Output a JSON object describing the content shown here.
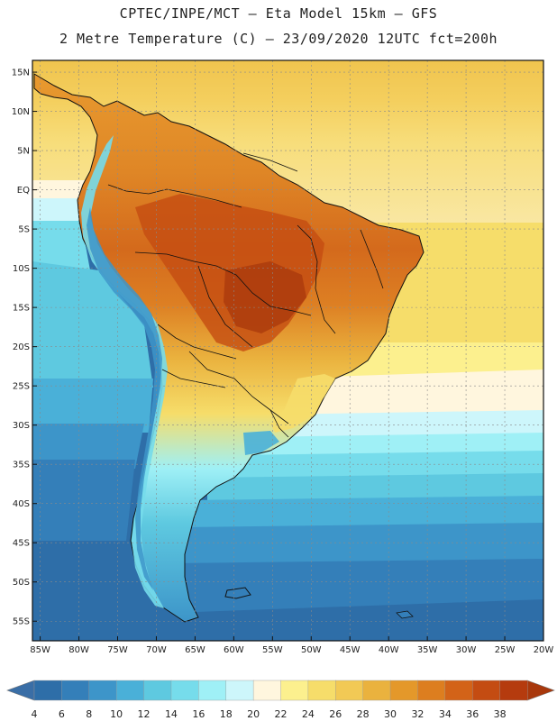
{
  "header": {
    "title_line1": "CPTEC/INPE/MCT –  Eta Model 15km – GFS",
    "title_line2": "2 Metre Temperature (C) – 23/09/2020 12UTC fct=200h"
  },
  "map": {
    "lat_labels": [
      "15N",
      "10N",
      "5N",
      "EQ",
      "5S",
      "10S",
      "15S",
      "20S",
      "25S",
      "30S",
      "35S",
      "40S",
      "45S",
      "50S",
      "55S"
    ],
    "lon_labels": [
      "85W",
      "80W",
      "75W",
      "70W",
      "65W",
      "60W",
      "55W",
      "50W",
      "45W",
      "40W",
      "35W",
      "30W",
      "25W",
      "20W"
    ],
    "lat_range": [
      16.5,
      -57.5
    ],
    "lon_range": [
      -86,
      -20
    ]
  },
  "legend": {
    "values": [
      "4",
      "6",
      "8",
      "10",
      "12",
      "14",
      "16",
      "18",
      "20",
      "22",
      "24",
      "26",
      "28",
      "30",
      "32",
      "34",
      "36",
      "38"
    ],
    "colors": [
      "#2e6ea8",
      "#347fb9",
      "#3d95c9",
      "#4ab0d8",
      "#5ec9e0",
      "#76dceb",
      "#9ff0f6",
      "#cdf6fb",
      "#fff6de",
      "#fcf08e",
      "#f6dd6a",
      "#f2c955",
      "#eab23e",
      "#e4982a",
      "#dd7e1f",
      "#d36318",
      "#c44c12",
      "#b53b0e"
    ],
    "low_color": "#3a6ea6",
    "high_color": "#a8380c"
  }
}
